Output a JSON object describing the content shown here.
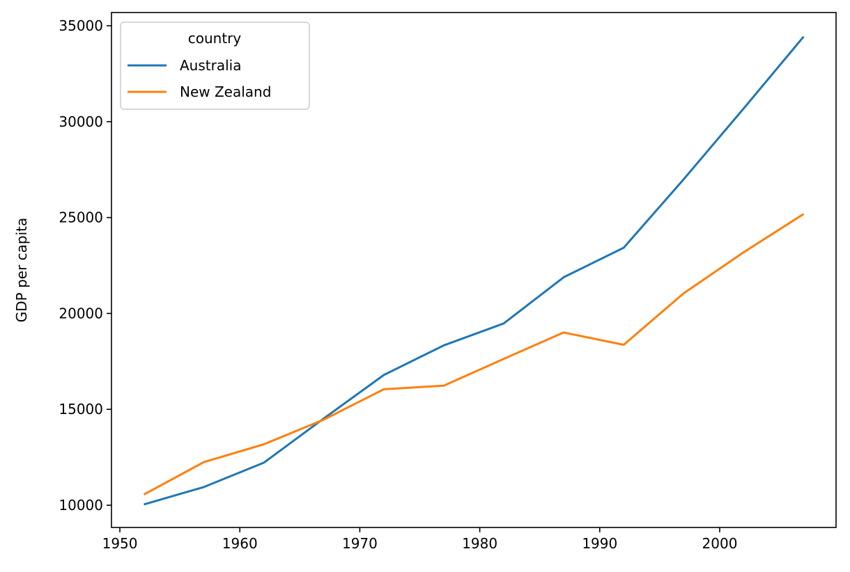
{
  "chart_data": {
    "type": "line",
    "title": "",
    "xlabel": "",
    "ylabel": "GDP per capita",
    "xlim": [
      1949.3,
      2009.7
    ],
    "ylim": [
      8840,
      35690
    ],
    "xticks": [
      1950,
      1960,
      1970,
      1980,
      1990,
      2000
    ],
    "yticks": [
      10000,
      15000,
      20000,
      25000,
      30000,
      35000
    ],
    "grid": false,
    "legend": {
      "title": "country",
      "placement": "top-left"
    },
    "x": [
      1952,
      1957,
      1962,
      1967,
      1972,
      1977,
      1982,
      1987,
      1992,
      1997,
      2002,
      2007
    ],
    "series": [
      {
        "name": "Australia",
        "color": "#1f77b4",
        "values": [
          10039.6,
          10949.65,
          12217.23,
          14526.12,
          16788.63,
          18334.2,
          19477.01,
          21888.89,
          23424.77,
          26997.94,
          30687.75,
          34435.37
        ]
      },
      {
        "name": "New Zealand",
        "color": "#ff7f0e",
        "values": [
          10556.58,
          12247.4,
          13175.68,
          14463.92,
          16046.04,
          16233.72,
          17632.41,
          19007.19,
          18363.32,
          21050.41,
          23189.8,
          25185.01
        ]
      }
    ]
  }
}
